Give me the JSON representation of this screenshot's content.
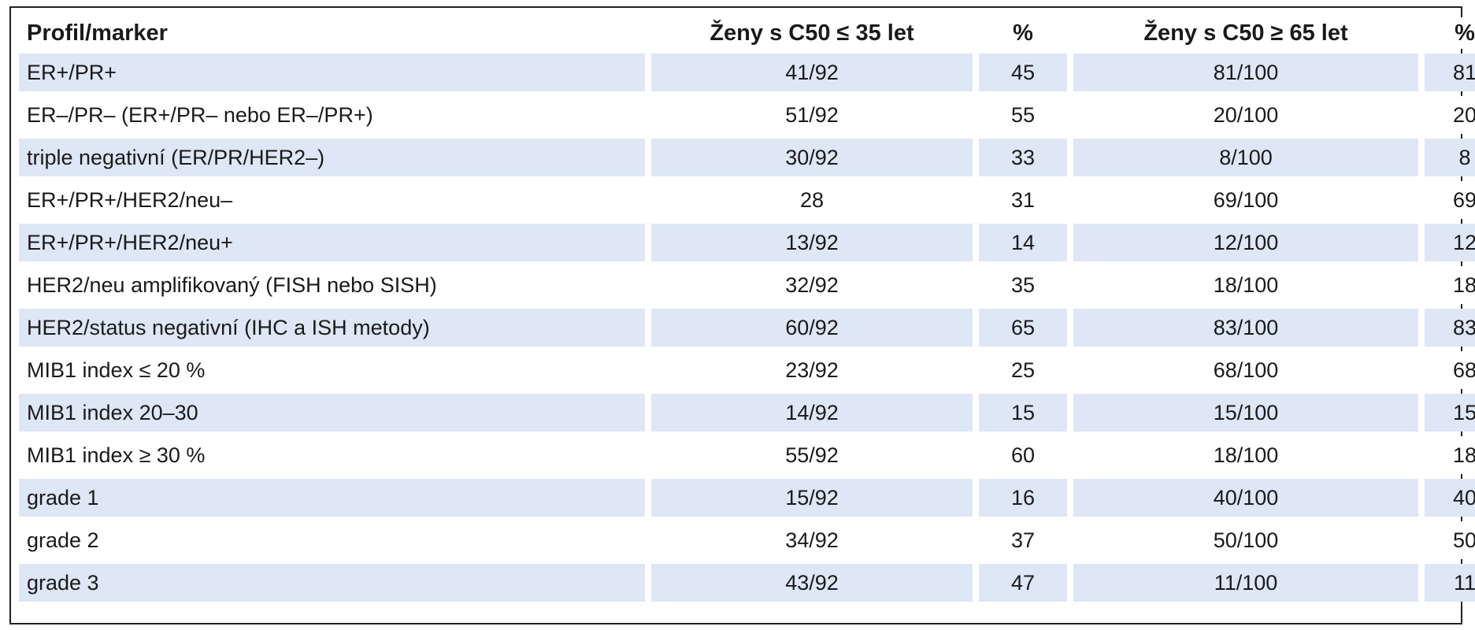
{
  "table": {
    "headers": {
      "profile": "Profil/marker",
      "young": "Ženy s C50 ≤ 35 let",
      "young_pct": "%",
      "old": "Ženy s C50 ≥ 65 let",
      "old_pct": "%"
    },
    "shade_color": "#dde7f5",
    "rows": [
      {
        "profile": "ER+/PR+",
        "young": "41/92",
        "young_pct": "45",
        "old": "81/100",
        "old_pct": "81"
      },
      {
        "profile": "ER–/PR– (ER+/PR– nebo ER–/PR+)",
        "young": "51/92",
        "young_pct": "55",
        "old": "20/100",
        "old_pct": "20"
      },
      {
        "profile": "triple negativní (ER/PR/HER2–)",
        "young": "30/92",
        "young_pct": "33",
        "old": "8/100",
        "old_pct": "8"
      },
      {
        "profile": "ER+/PR+/HER2/neu–",
        "young": "28",
        "young_pct": "31",
        "old": "69/100",
        "old_pct": "69"
      },
      {
        "profile": "ER+/PR+/HER2/neu+",
        "young": "13/92",
        "young_pct": "14",
        "old": "12/100",
        "old_pct": "12"
      },
      {
        "profile": "HER2/neu amplifikovaný (FISH nebo SISH)",
        "young": "32/92",
        "young_pct": "35",
        "old": "18/100",
        "old_pct": "18"
      },
      {
        "profile": "HER2/status negativní (IHC a ISH metody)",
        "young": "60/92",
        "young_pct": "65",
        "old": "83/100",
        "old_pct": "83"
      },
      {
        "profile": "MIB1 index ≤ 20 %",
        "young": "23/92",
        "young_pct": "25",
        "old": "68/100",
        "old_pct": "68"
      },
      {
        "profile": "MIB1 index 20–30",
        "young": "14/92",
        "young_pct": "15",
        "old": "15/100",
        "old_pct": "15"
      },
      {
        "profile": "MIB1 index ≥ 30 %",
        "young": "55/92",
        "young_pct": "60",
        "old": "18/100",
        "old_pct": "18"
      },
      {
        "profile": "grade 1",
        "young": "15/92",
        "young_pct": "16",
        "old": "40/100",
        "old_pct": "40"
      },
      {
        "profile": "grade 2",
        "young": "34/92",
        "young_pct": "37",
        "old": "50/100",
        "old_pct": "50"
      },
      {
        "profile": "grade 3",
        "young": "43/92",
        "young_pct": "47",
        "old": "11/100",
        "old_pct": "11"
      }
    ]
  }
}
